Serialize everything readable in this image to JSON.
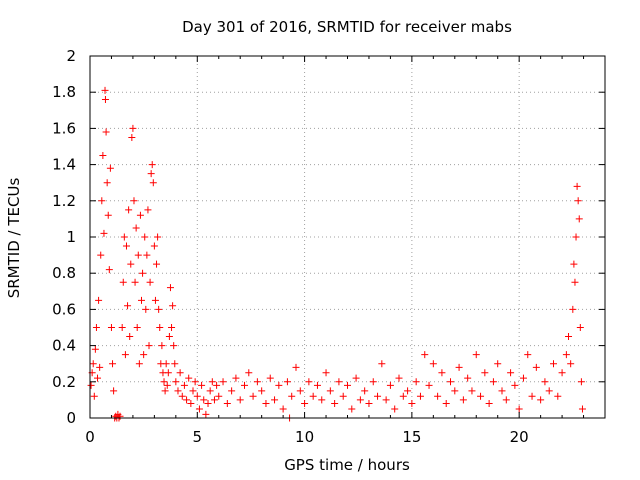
{
  "chart_data": {
    "type": "scatter",
    "title": "Day 301 of 2016, SRMTID for receiver mabs",
    "xlabel": "GPS time / hours",
    "ylabel": "SRMTID / TECUs",
    "xlim": [
      0,
      24
    ],
    "ylim": [
      0,
      2
    ],
    "xticks": [
      0,
      5,
      10,
      15,
      20
    ],
    "yticks": [
      0,
      0.2,
      0.4,
      0.6,
      0.8,
      1,
      1.2,
      1.4,
      1.6,
      1.8,
      2
    ],
    "xtick_labels": [
      "0",
      "5",
      "10",
      "15",
      "20"
    ],
    "ytick_labels": [
      "0",
      "0.2",
      "0.4",
      "0.6",
      "0.8",
      "1",
      "1.2",
      "1.4",
      "1.6",
      "1.8",
      "2"
    ],
    "grid": true,
    "marker": "+",
    "color": "#ff0000",
    "series": [
      {
        "name": "SRMTID",
        "points": [
          [
            0.05,
            0.18
          ],
          [
            0.1,
            0.25
          ],
          [
            0.15,
            0.3
          ],
          [
            0.2,
            0.12
          ],
          [
            0.25,
            0.38
          ],
          [
            0.3,
            0.5
          ],
          [
            0.35,
            0.22
          ],
          [
            0.4,
            0.65
          ],
          [
            0.45,
            0.28
          ],
          [
            0.5,
            0.9
          ],
          [
            0.55,
            1.2
          ],
          [
            0.6,
            1.45
          ],
          [
            0.65,
            1.02
          ],
          [
            0.7,
            1.81
          ],
          [
            0.72,
            1.76
          ],
          [
            0.75,
            1.58
          ],
          [
            0.8,
            1.3
          ],
          [
            0.85,
            1.12
          ],
          [
            0.9,
            0.82
          ],
          [
            0.95,
            1.38
          ],
          [
            1.0,
            0.5
          ],
          [
            1.05,
            0.3
          ],
          [
            1.1,
            0.15
          ],
          [
            1.15,
            0.0
          ],
          [
            1.2,
            0.01
          ],
          [
            1.25,
            0.0
          ],
          [
            1.3,
            0.02
          ],
          [
            1.35,
            0.0
          ],
          [
            1.4,
            0.01
          ],
          [
            1.5,
            0.5
          ],
          [
            1.55,
            0.75
          ],
          [
            1.6,
            1.0
          ],
          [
            1.65,
            0.35
          ],
          [
            1.7,
            0.95
          ],
          [
            1.75,
            0.62
          ],
          [
            1.8,
            1.15
          ],
          [
            1.85,
            0.45
          ],
          [
            1.9,
            0.85
          ],
          [
            1.95,
            1.55
          ],
          [
            2.0,
            1.6
          ],
          [
            2.05,
            1.2
          ],
          [
            2.1,
            0.75
          ],
          [
            2.15,
            1.05
          ],
          [
            2.2,
            0.5
          ],
          [
            2.25,
            0.9
          ],
          [
            2.3,
            0.3
          ],
          [
            2.35,
            1.12
          ],
          [
            2.4,
            0.65
          ],
          [
            2.45,
            0.8
          ],
          [
            2.5,
            0.35
          ],
          [
            2.55,
            1.0
          ],
          [
            2.6,
            0.6
          ],
          [
            2.65,
            0.9
          ],
          [
            2.7,
            1.15
          ],
          [
            2.75,
            0.4
          ],
          [
            2.8,
            0.75
          ],
          [
            2.85,
            1.35
          ],
          [
            2.9,
            1.4
          ],
          [
            2.95,
            1.3
          ],
          [
            3.0,
            0.95
          ],
          [
            3.05,
            0.65
          ],
          [
            3.1,
            0.85
          ],
          [
            3.15,
            1.0
          ],
          [
            3.2,
            0.6
          ],
          [
            3.25,
            0.5
          ],
          [
            3.3,
            0.3
          ],
          [
            3.35,
            0.4
          ],
          [
            3.4,
            0.25
          ],
          [
            3.45,
            0.2
          ],
          [
            3.5,
            0.15
          ],
          [
            3.55,
            0.3
          ],
          [
            3.6,
            0.18
          ],
          [
            3.65,
            0.25
          ],
          [
            3.7,
            0.45
          ],
          [
            3.75,
            0.72
          ],
          [
            3.8,
            0.5
          ],
          [
            3.85,
            0.62
          ],
          [
            3.9,
            0.4
          ],
          [
            3.95,
            0.3
          ],
          [
            4.0,
            0.2
          ],
          [
            4.1,
            0.15
          ],
          [
            4.2,
            0.25
          ],
          [
            4.3,
            0.12
          ],
          [
            4.4,
            0.18
          ],
          [
            4.5,
            0.1
          ],
          [
            4.6,
            0.22
          ],
          [
            4.7,
            0.08
          ],
          [
            4.8,
            0.15
          ],
          [
            4.9,
            0.2
          ],
          [
            5.0,
            0.12
          ],
          [
            5.1,
            0.05
          ],
          [
            5.2,
            0.18
          ],
          [
            5.3,
            0.1
          ],
          [
            5.4,
            0.02
          ],
          [
            5.5,
            0.08
          ],
          [
            5.6,
            0.15
          ],
          [
            5.7,
            0.2
          ],
          [
            5.8,
            0.1
          ],
          [
            5.9,
            0.18
          ],
          [
            6.0,
            0.12
          ],
          [
            6.2,
            0.2
          ],
          [
            6.4,
            0.08
          ],
          [
            6.6,
            0.15
          ],
          [
            6.8,
            0.22
          ],
          [
            7.0,
            0.1
          ],
          [
            7.2,
            0.18
          ],
          [
            7.4,
            0.25
          ],
          [
            7.6,
            0.12
          ],
          [
            7.8,
            0.2
          ],
          [
            8.0,
            0.15
          ],
          [
            8.2,
            0.08
          ],
          [
            8.4,
            0.22
          ],
          [
            8.6,
            0.1
          ],
          [
            8.8,
            0.18
          ],
          [
            9.0,
            0.05
          ],
          [
            9.2,
            0.2
          ],
          [
            9.3,
            0.0
          ],
          [
            9.4,
            0.12
          ],
          [
            9.6,
            0.28
          ],
          [
            9.8,
            0.15
          ],
          [
            10.0,
            0.08
          ],
          [
            10.2,
            0.2
          ],
          [
            10.4,
            0.12
          ],
          [
            10.6,
            0.18
          ],
          [
            10.8,
            0.1
          ],
          [
            11.0,
            0.25
          ],
          [
            11.2,
            0.15
          ],
          [
            11.4,
            0.08
          ],
          [
            11.6,
            0.2
          ],
          [
            11.8,
            0.12
          ],
          [
            12.0,
            0.18
          ],
          [
            12.2,
            0.05
          ],
          [
            12.4,
            0.22
          ],
          [
            12.6,
            0.1
          ],
          [
            12.8,
            0.15
          ],
          [
            13.0,
            0.08
          ],
          [
            13.2,
            0.2
          ],
          [
            13.4,
            0.12
          ],
          [
            13.6,
            0.3
          ],
          [
            13.8,
            0.1
          ],
          [
            14.0,
            0.18
          ],
          [
            14.2,
            0.05
          ],
          [
            14.4,
            0.22
          ],
          [
            14.6,
            0.12
          ],
          [
            14.8,
            0.15
          ],
          [
            15.0,
            0.08
          ],
          [
            15.2,
            0.2
          ],
          [
            15.4,
            0.12
          ],
          [
            15.6,
            0.35
          ],
          [
            15.8,
            0.18
          ],
          [
            16.0,
            0.3
          ],
          [
            16.2,
            0.12
          ],
          [
            16.4,
            0.25
          ],
          [
            16.6,
            0.08
          ],
          [
            16.8,
            0.2
          ],
          [
            17.0,
            0.15
          ],
          [
            17.2,
            0.28
          ],
          [
            17.4,
            0.1
          ],
          [
            17.6,
            0.22
          ],
          [
            17.8,
            0.15
          ],
          [
            18.0,
            0.35
          ],
          [
            18.2,
            0.12
          ],
          [
            18.4,
            0.25
          ],
          [
            18.6,
            0.08
          ],
          [
            18.8,
            0.2
          ],
          [
            19.0,
            0.3
          ],
          [
            19.2,
            0.15
          ],
          [
            19.4,
            0.1
          ],
          [
            19.6,
            0.25
          ],
          [
            19.8,
            0.18
          ],
          [
            20.0,
            0.05
          ],
          [
            20.2,
            0.22
          ],
          [
            20.4,
            0.35
          ],
          [
            20.6,
            0.12
          ],
          [
            20.8,
            0.28
          ],
          [
            21.0,
            0.1
          ],
          [
            21.2,
            0.2
          ],
          [
            21.4,
            0.15
          ],
          [
            21.6,
            0.3
          ],
          [
            21.8,
            0.12
          ],
          [
            22.0,
            0.25
          ],
          [
            22.2,
            0.35
          ],
          [
            22.3,
            0.45
          ],
          [
            22.4,
            0.3
          ],
          [
            22.5,
            0.6
          ],
          [
            22.55,
            0.85
          ],
          [
            22.6,
            0.75
          ],
          [
            22.65,
            1.0
          ],
          [
            22.7,
            1.28
          ],
          [
            22.75,
            1.2
          ],
          [
            22.8,
            1.1
          ],
          [
            22.85,
            0.5
          ],
          [
            22.9,
            0.2
          ],
          [
            22.95,
            0.05
          ]
        ]
      }
    ]
  }
}
